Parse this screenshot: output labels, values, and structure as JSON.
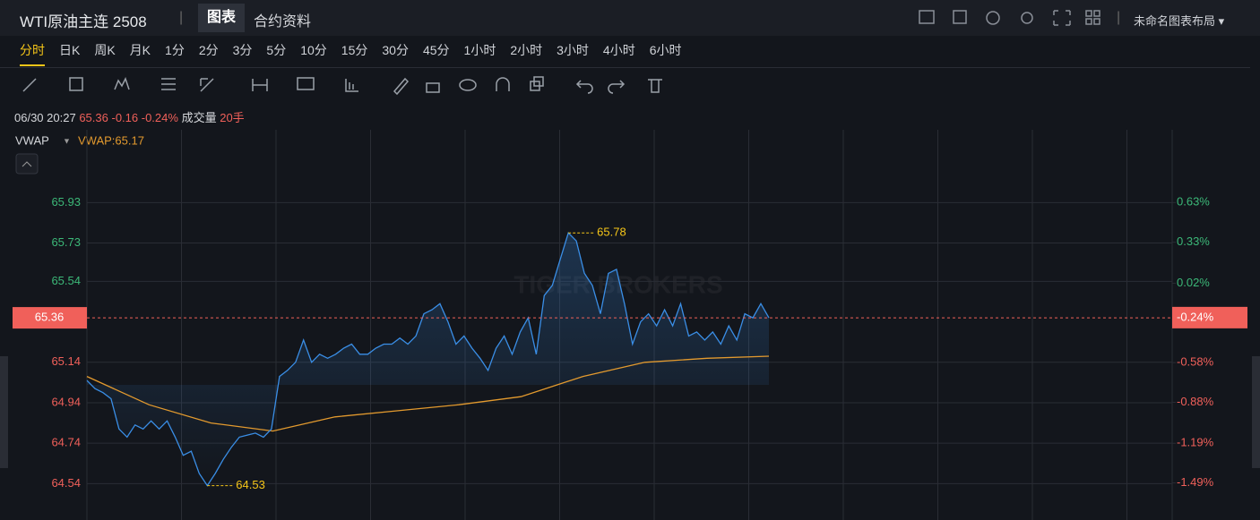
{
  "header": {
    "title": "WTI原油主连 2508",
    "tabs": [
      "图表",
      "合约资料"
    ],
    "layout": "未命名图表布局"
  },
  "timeframes": [
    "分时",
    "日K",
    "周K",
    "月K",
    "1分",
    "2分",
    "3分",
    "5分",
    "10分",
    "15分",
    "30分",
    "45分",
    "1小时",
    "2小时",
    "3小时",
    "4小时",
    "6小时"
  ],
  "info": {
    "time": "06/30 20:27",
    "price": "65.36",
    "change": "-0.16",
    "change_pct": "-0.24%",
    "volume_label": "成交量",
    "volume": "20手"
  },
  "watermark": "TIGER BROKERS",
  "chart_data": {
    "type": "line",
    "indicator": "VWAP",
    "indicator_value": "VWAP:65.17",
    "ylim": [
      64.36,
      66.29
    ],
    "yticks": [
      64.54,
      64.74,
      64.94,
      65.14,
      65.54,
      65.73,
      65.93
    ],
    "y2lim": [
      -1.77,
      1.18
    ],
    "y2ticks": [
      {
        "value": -1.49,
        "label": "-1.49%"
      },
      {
        "value": -1.19,
        "label": "-1.19%"
      },
      {
        "value": -0.88,
        "label": "-0.88%"
      },
      {
        "value": -0.58,
        "label": "-0.58%"
      },
      {
        "value": 0.02,
        "label": "0.02%"
      },
      {
        "value": 0.33,
        "label": "0.33%"
      },
      {
        "value": 0.63,
        "label": "0.63%"
      }
    ],
    "grid": true,
    "series": [
      {
        "color": "#3a8ee6",
        "values": [
          65.05,
          65.01,
          64.99,
          64.96,
          64.81,
          64.77,
          64.83,
          64.81,
          64.85,
          64.81,
          64.85,
          64.77,
          64.68,
          64.7,
          64.59,
          64.53,
          64.59,
          64.66,
          64.72,
          64.77,
          64.78,
          64.79,
          64.77,
          64.81,
          65.07,
          65.1,
          65.14,
          65.25,
          65.14,
          65.18,
          65.16,
          65.18,
          65.21,
          65.23,
          65.18,
          65.18,
          65.21,
          65.23,
          65.23,
          65.26,
          65.23,
          65.27,
          65.38,
          65.4,
          65.43,
          65.34,
          65.23,
          65.27,
          65.21,
          65.16,
          65.1,
          65.21,
          65.27,
          65.18,
          65.29,
          65.36,
          65.18,
          65.47,
          65.52,
          65.65,
          65.78,
          65.74,
          65.58,
          65.52,
          65.38,
          65.58,
          65.6,
          65.43,
          65.23,
          65.34,
          65.38,
          65.32,
          65.4,
          65.32,
          65.43,
          65.27,
          65.29,
          65.25,
          65.29,
          65.23,
          65.32,
          65.25,
          65.38,
          65.36,
          65.43,
          65.36
        ]
      },
      {
        "name": "VWAP",
        "color": "#e39a2e",
        "values": [
          65.07,
          64.93,
          64.84,
          64.8,
          64.87,
          64.9,
          64.93,
          64.97,
          65.07,
          65.14,
          65.16,
          65.17
        ]
      }
    ],
    "high": 65.78,
    "low": 64.53,
    "last": 65.36,
    "last_pct": {
      "value": -0.24,
      "label": "-0.24%"
    }
  }
}
